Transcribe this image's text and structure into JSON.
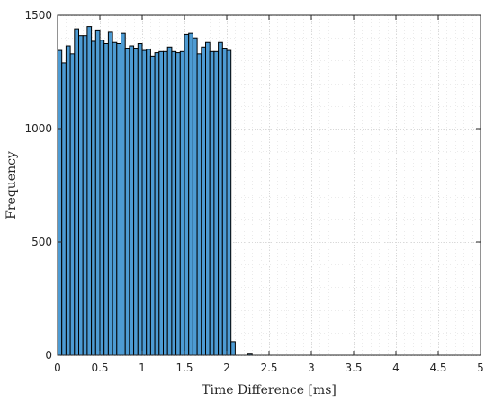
{
  "chart_data": {
    "type": "bar",
    "title": "",
    "xlabel": "Time Difference [ms]",
    "ylabel": "Frequency",
    "xlim": [
      0,
      5
    ],
    "ylim": [
      0,
      1500
    ],
    "xticks": [
      0,
      0.5,
      1,
      1.5,
      2,
      2.5,
      3,
      3.5,
      4,
      4.5,
      5
    ],
    "xtick_labels": [
      "0",
      "0.5",
      "1",
      "1.5",
      "2",
      "2.5",
      "3",
      "3.5",
      "4",
      "4.5",
      "5"
    ],
    "yticks": [
      0,
      500,
      1000,
      1500
    ],
    "ytick_labels": [
      "0",
      "500",
      "1000",
      "1500"
    ],
    "grid": true,
    "minor_grid": true,
    "bar_color": "#4d9bd3",
    "bin_width": 0.05,
    "bin_edges_start": [
      0,
      0.05,
      0.1,
      0.15,
      0.2,
      0.25,
      0.3,
      0.35,
      0.4,
      0.45,
      0.5,
      0.55,
      0.6,
      0.65,
      0.7,
      0.75,
      0.8,
      0.85,
      0.9,
      0.95,
      1.0,
      1.05,
      1.1,
      1.15,
      1.2,
      1.25,
      1.3,
      1.35,
      1.4,
      1.45,
      1.5,
      1.55,
      1.6,
      1.65,
      1.7,
      1.75,
      1.8,
      1.85,
      1.9,
      1.95,
      2.0,
      2.05,
      2.1,
      2.15,
      2.2,
      2.25
    ],
    "values": [
      1345,
      1290,
      1365,
      1330,
      1440,
      1410,
      1410,
      1450,
      1385,
      1435,
      1390,
      1375,
      1425,
      1380,
      1375,
      1420,
      1355,
      1365,
      1355,
      1375,
      1345,
      1350,
      1320,
      1335,
      1340,
      1340,
      1360,
      1340,
      1335,
      1340,
      1415,
      1420,
      1400,
      1330,
      1360,
      1380,
      1340,
      1340,
      1380,
      1355,
      1345,
      60,
      0,
      0,
      0,
      5
    ]
  }
}
